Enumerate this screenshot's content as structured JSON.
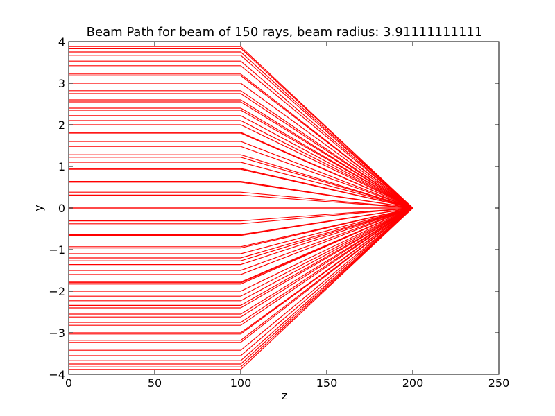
{
  "chart_data": {
    "type": "line",
    "title": "Beam Path for beam of 150 rays, beam radius: 3.91111111111",
    "xlabel": "z",
    "ylabel": "y",
    "xlim": [
      0,
      250
    ],
    "ylim": [
      -4,
      4
    ],
    "xticks": [
      0,
      50,
      100,
      150,
      200,
      250
    ],
    "xtick_labels": [
      "0",
      "50",
      "100",
      "150",
      "200",
      "250"
    ],
    "yticks": [
      -4,
      -3,
      -2,
      -1,
      0,
      1,
      2,
      3,
      4
    ],
    "ytick_labels": [
      "−4",
      "−3",
      "−2",
      "−1",
      "0",
      "1",
      "2",
      "3",
      "4"
    ],
    "grid": false,
    "line_color": "#ff0000",
    "ray_path_z": [
      0,
      100,
      200
    ],
    "focus_y": 0,
    "ray_heights": [
      3.88,
      3.84,
      3.75,
      3.67,
      3.53,
      3.42,
      3.22,
      3.18,
      3.0,
      2.82,
      2.75,
      2.6,
      2.55,
      2.4,
      2.35,
      2.22,
      2.1,
      2.0,
      1.82,
      1.8,
      1.6,
      1.48,
      1.28,
      1.22,
      1.1,
      0.95,
      0.93,
      0.64,
      0.62,
      0.38,
      0.31,
      0.0,
      -0.0,
      -0.31,
      -0.38,
      -0.64,
      -0.66,
      -0.93,
      -0.96,
      -1.1,
      -1.2,
      -1.27,
      -1.36,
      -1.5,
      -1.6,
      -1.78,
      -1.8,
      -1.83,
      -2.0,
      -2.12,
      -2.23,
      -2.34,
      -2.4,
      -2.55,
      -2.62,
      -2.75,
      -2.82,
      -3.0,
      -3.03,
      -3.18,
      -3.23,
      -3.42,
      -3.55,
      -3.67,
      -3.75,
      -3.82,
      -3.88
    ]
  }
}
